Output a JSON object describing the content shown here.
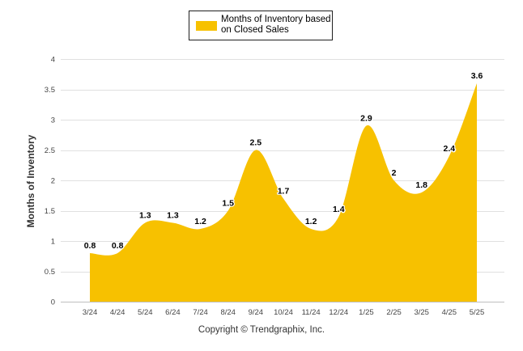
{
  "chart_data": {
    "type": "area",
    "categories": [
      "3/24",
      "4/24",
      "5/24",
      "6/24",
      "7/24",
      "8/24",
      "9/24",
      "10/24",
      "11/24",
      "12/24",
      "1/25",
      "2/25",
      "3/25",
      "4/25",
      "5/25"
    ],
    "series": [
      {
        "name": "Months of Inventory based on Closed Sales",
        "values": [
          0.8,
          0.8,
          1.3,
          1.3,
          1.2,
          1.5,
          2.5,
          1.7,
          1.2,
          1.4,
          2.9,
          2,
          1.8,
          2.4,
          3.6
        ],
        "color": "#f7c100"
      }
    ],
    "ylabel": "Months of Inventory",
    "xlabel": "",
    "ylim": [
      0,
      4
    ],
    "yticks": [
      0,
      0.5,
      1,
      1.5,
      2,
      2.5,
      3,
      3.5,
      4
    ],
    "grid": true,
    "legend_position": "top-center",
    "smooth": true
  },
  "legend": {
    "line1": "Months of Inventory based",
    "line2": "on Closed Sales"
  },
  "footer": {
    "copyright": "Copyright © Trendgraphix, Inc."
  },
  "colors": {
    "area": "#f7c100",
    "grid": "#e0e0e0",
    "axis_text": "#444444"
  }
}
